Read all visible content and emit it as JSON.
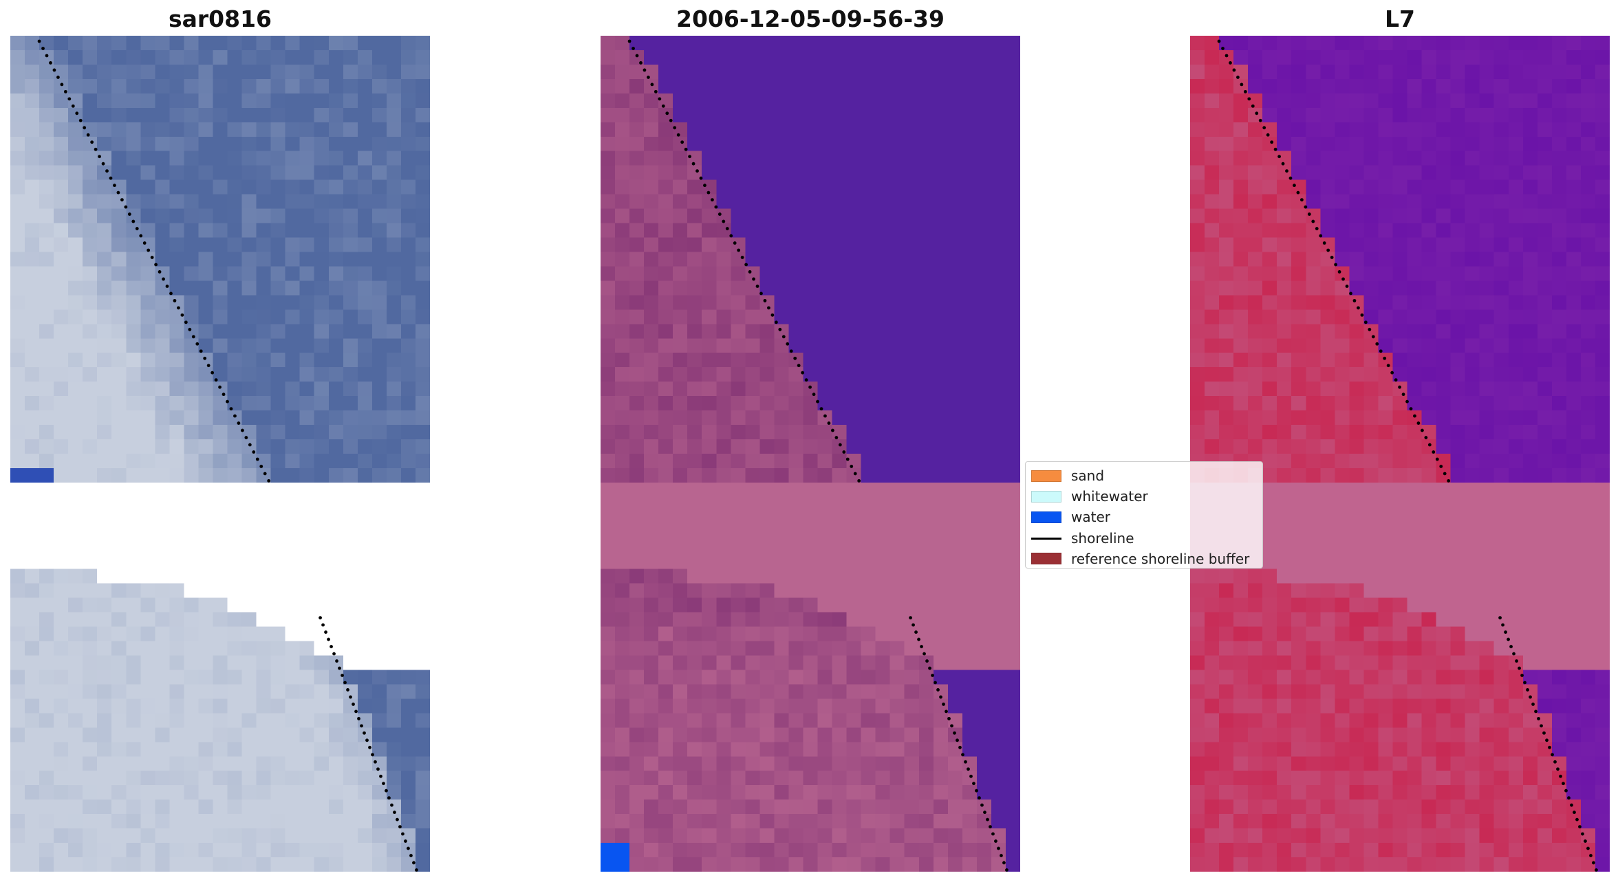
{
  "panels": [
    {
      "id": "rgb",
      "title": "sar0816",
      "palette": "rgb"
    },
    {
      "id": "classified",
      "title": "2006-12-05-09-56-39",
      "palette": "classified"
    },
    {
      "id": "index",
      "title": "L7",
      "palette": "index"
    }
  ],
  "legend": {
    "placement": "center",
    "items": [
      {
        "label": "sand",
        "kind": "patch",
        "color": "#f68c3f"
      },
      {
        "label": "whitewater",
        "kind": "patch",
        "color": "#ccfafb"
      },
      {
        "label": "water",
        "kind": "patch",
        "color": "#0855f1"
      },
      {
        "label": "shoreline",
        "kind": "line",
        "color": "#000000"
      },
      {
        "label": "reference shoreline buffer",
        "kind": "patch",
        "color": "#9a2f34"
      }
    ]
  },
  "colors": {
    "rgb_base": "#5169a0",
    "rgb_beach": "#c7cfde",
    "rgb_water_edge": "#2f4fb5",
    "classified_water": "#5522a0",
    "classified_land": "#8a3a78",
    "classified_band": "#b86590",
    "classified_water_px": "#0855f1",
    "index_water": "#6b14a8",
    "index_land": "#c82a55",
    "index_band": "#c0648f",
    "shoreline": "#000000"
  }
}
